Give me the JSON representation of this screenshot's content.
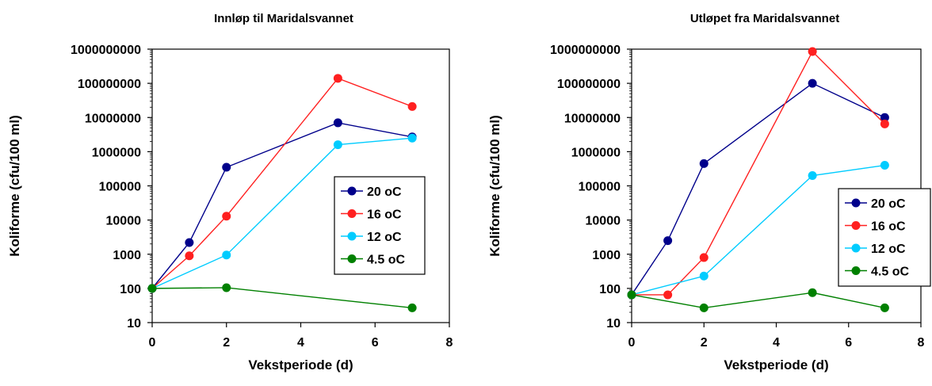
{
  "chart_data": [
    {
      "type": "line",
      "title": "Innløp til Maridalsvannet",
      "xlabel": "Vekstperiode (d)",
      "ylabel": "Koliforme (cfu/100 ml)",
      "xlim": [
        0,
        8
      ],
      "xticks": [
        "0",
        "2",
        "4",
        "6",
        "8"
      ],
      "ylim": [
        10,
        1000000000
      ],
      "yscale": "log",
      "yticks": [
        "10",
        "100",
        "1000",
        "10000",
        "100000",
        "1000000",
        "10000000",
        "100000000",
        "1000000000"
      ],
      "grid": false,
      "legend_position": "right",
      "series": [
        {
          "name": "20 oC",
          "color": "#00008B",
          "points": [
            [
              0,
              100
            ],
            [
              1,
              2200
            ],
            [
              2,
              350000
            ],
            [
              5,
              7000000
            ],
            [
              7,
              2700000
            ]
          ]
        },
        {
          "name": "16 oC",
          "color": "#FF2020",
          "points": [
            [
              0,
              100
            ],
            [
              1,
              900
            ],
            [
              2,
              13000
            ],
            [
              5,
              140000000
            ],
            [
              7,
              21000000
            ]
          ]
        },
        {
          "name": "12 oC",
          "color": "#00CCFF",
          "points": [
            [
              0,
              100
            ],
            [
              2,
              950
            ],
            [
              5,
              1600000
            ],
            [
              7,
              2500000
            ]
          ]
        },
        {
          "name": "4.5 oC",
          "color": "#008000",
          "points": [
            [
              0,
              100
            ],
            [
              2,
              105
            ],
            [
              7,
              27
            ]
          ]
        }
      ]
    },
    {
      "type": "line",
      "title": "Utløpet fra Maridalsvannet",
      "xlabel": "Vekstperiode (d)",
      "ylabel": "Koliforme (cfu/100 ml)",
      "xlim": [
        0,
        8
      ],
      "xticks": [
        "0",
        "2",
        "4",
        "6",
        "8"
      ],
      "ylim": [
        10,
        1000000000
      ],
      "yscale": "log",
      "yticks": [
        "10",
        "100",
        "1000",
        "10000",
        "100000",
        "1000000",
        "10000000",
        "100000000",
        "1000000000"
      ],
      "grid": false,
      "legend_position": "right",
      "series": [
        {
          "name": "20 oC",
          "color": "#00008B",
          "points": [
            [
              0,
              65
            ],
            [
              1,
              2500
            ],
            [
              2,
              450000
            ],
            [
              5,
              100000000
            ],
            [
              7,
              10000000
            ]
          ]
        },
        {
          "name": "16 oC",
          "color": "#FF2020",
          "points": [
            [
              0,
              65
            ],
            [
              1,
              65
            ],
            [
              2,
              800
            ],
            [
              5,
              850000000
            ],
            [
              7,
              6500000
            ]
          ]
        },
        {
          "name": "12 oC",
          "color": "#00CCFF",
          "points": [
            [
              0,
              65
            ],
            [
              2,
              230
            ],
            [
              5,
              200000
            ],
            [
              7,
              400000
            ]
          ]
        },
        {
          "name": "4.5 oC",
          "color": "#008000",
          "points": [
            [
              0,
              65
            ],
            [
              2,
              27
            ],
            [
              5,
              75
            ],
            [
              7,
              27
            ]
          ]
        }
      ]
    }
  ]
}
